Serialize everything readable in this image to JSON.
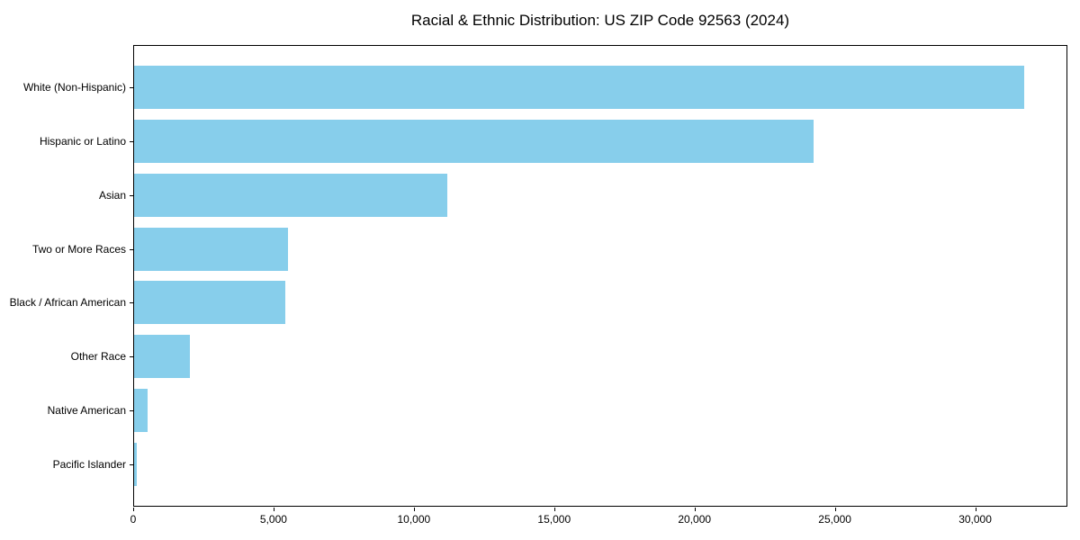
{
  "title": "Racial & Ethnic Distribution: US ZIP Code 92563 (2024)",
  "colors": {
    "bar": "#87CEEB",
    "spine": "#000000",
    "background": "#FFFFFF",
    "text": "#000000"
  },
  "chart_data": {
    "type": "bar",
    "orientation": "horizontal",
    "title": "Racial & Ethnic Distribution: US ZIP Code 92563 (2024)",
    "categories": [
      "White (Non-Hispanic)",
      "Hispanic or Latino",
      "Asian",
      "Two or More Races",
      "Black / African American",
      "Other Race",
      "Native American",
      "Pacific Islander"
    ],
    "values": [
      31700,
      24200,
      11150,
      5470,
      5390,
      2000,
      480,
      110
    ],
    "xlabel": "",
    "ylabel": "",
    "xlim": [
      0,
      33285
    ],
    "x_ticks": [
      0,
      5000,
      10000,
      15000,
      20000,
      25000,
      30000
    ],
    "x_tick_labels": [
      "0",
      "5,000",
      "10,000",
      "15,000",
      "20,000",
      "25,000",
      "30,000"
    ],
    "bar_color": "#87CEEB",
    "grid": false,
    "legend": null,
    "sorted": "descending, largest bar at top"
  }
}
